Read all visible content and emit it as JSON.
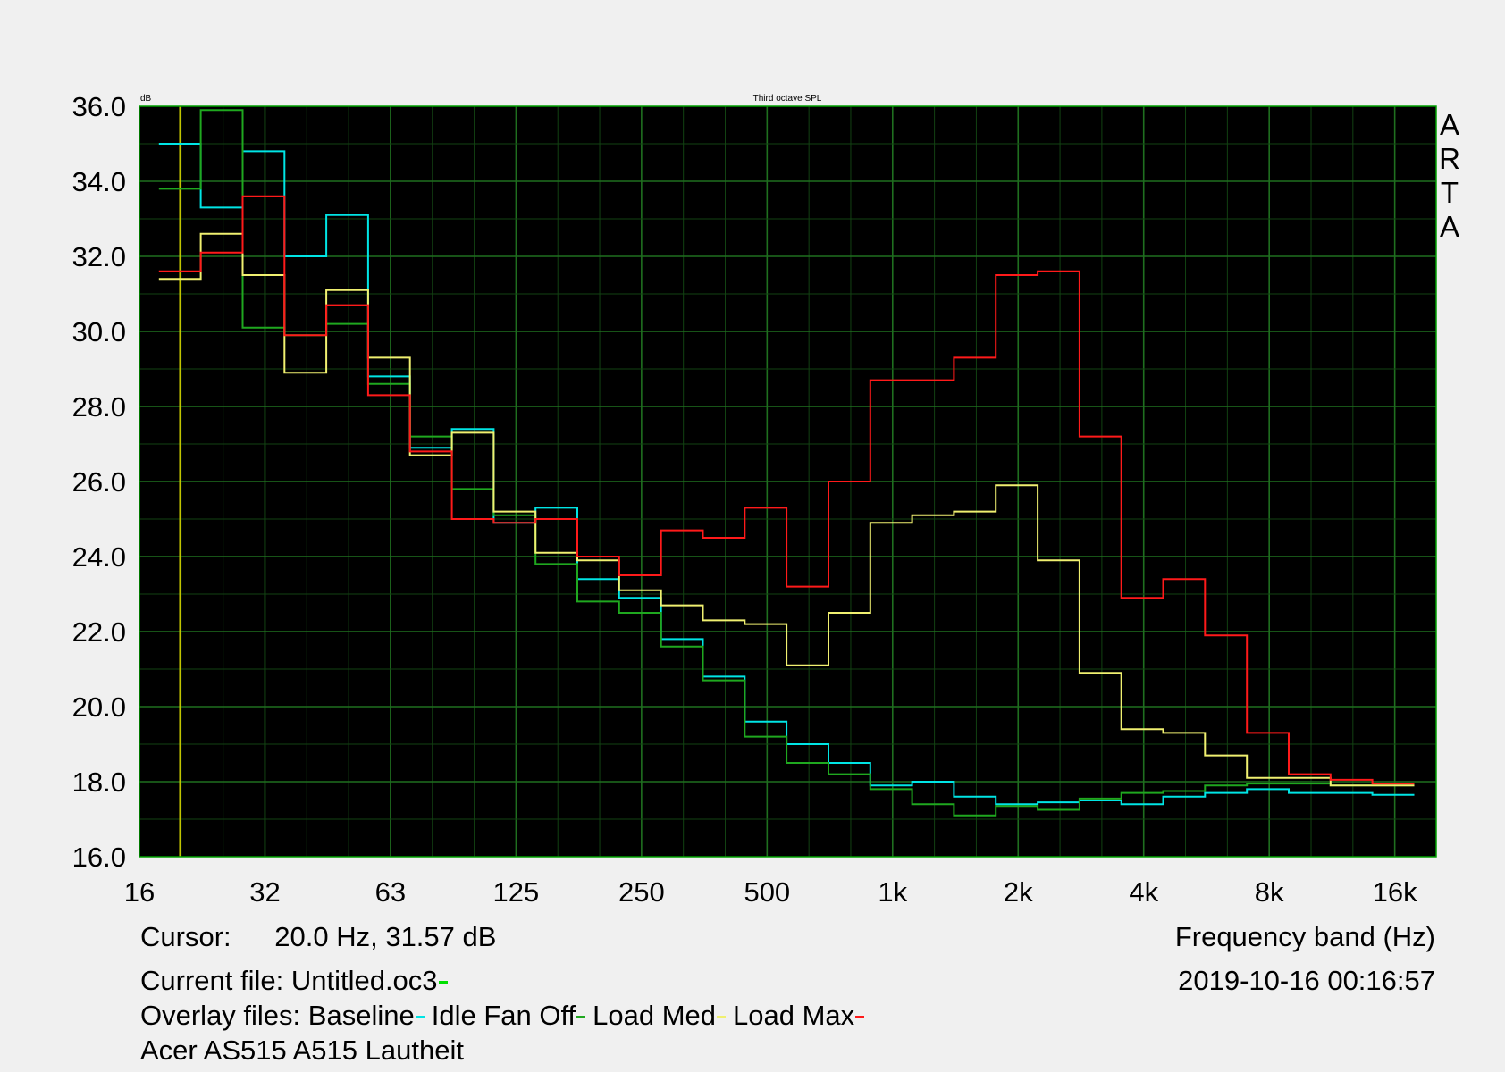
{
  "chart_data": {
    "type": "line",
    "title": "Third octave SPL",
    "ylabel": "dB",
    "xlabel": "Frequency band (Hz)",
    "brand": "ARTA",
    "ylim": [
      16,
      36
    ],
    "y_ticks": [
      "36.0",
      "34.0",
      "32.0",
      "30.0",
      "28.0",
      "26.0",
      "24.0",
      "22.0",
      "20.0",
      "18.0",
      "16.0"
    ],
    "x_tick_labels": [
      "16",
      "32",
      "63",
      "125",
      "250",
      "500",
      "1k",
      "2k",
      "4k",
      "8k",
      "16k"
    ],
    "bands": [
      "20",
      "25",
      "31.5",
      "40",
      "50",
      "63",
      "80",
      "100",
      "125",
      "160",
      "200",
      "250",
      "315",
      "400",
      "500",
      "630",
      "800",
      "1k",
      "1.25k",
      "1.6k",
      "2k",
      "2.5k",
      "3.15k",
      "4k",
      "5k",
      "6.3k",
      "8k",
      "10k",
      "12.5k",
      "16k"
    ],
    "cursor_x": 20.0,
    "grid": true,
    "series": [
      {
        "name": "Baseline",
        "color": "#00e5e5",
        "values": [
          35.0,
          33.3,
          34.8,
          32.0,
          33.1,
          28.8,
          26.9,
          27.4,
          24.9,
          25.3,
          23.4,
          22.9,
          21.8,
          20.8,
          19.6,
          19.0,
          18.5,
          17.9,
          18.0,
          17.6,
          17.4,
          17.45,
          17.5,
          17.4,
          17.6,
          17.7,
          17.8,
          17.7,
          17.7,
          17.65
        ]
      },
      {
        "name": "Idle Fan Off",
        "color": "#1fa81f",
        "values": [
          33.8,
          35.9,
          30.1,
          29.9,
          30.2,
          28.6,
          27.2,
          25.8,
          25.1,
          23.8,
          22.8,
          22.5,
          21.6,
          20.7,
          19.2,
          18.5,
          18.2,
          17.8,
          17.4,
          17.1,
          17.35,
          17.25,
          17.55,
          17.7,
          17.75,
          17.9,
          17.95,
          17.95,
          17.9,
          17.9
        ]
      },
      {
        "name": "Load Med",
        "color": "#f0f070",
        "values": [
          31.4,
          32.6,
          31.5,
          28.9,
          31.1,
          29.3,
          26.7,
          27.3,
          25.2,
          24.1,
          23.9,
          23.1,
          22.7,
          22.3,
          22.2,
          21.1,
          22.5,
          24.9,
          25.1,
          25.2,
          25.9,
          23.9,
          20.9,
          19.4,
          19.3,
          18.7,
          18.1,
          18.1,
          17.9,
          17.9
        ]
      },
      {
        "name": "Load Max",
        "color": "#ff1a1a",
        "values": [
          31.6,
          32.1,
          33.6,
          29.9,
          30.7,
          28.3,
          26.8,
          25.0,
          24.9,
          25.0,
          24.0,
          23.5,
          24.7,
          24.5,
          25.3,
          23.2,
          26.0,
          28.7,
          28.7,
          29.3,
          31.5,
          31.6,
          27.2,
          22.9,
          23.4,
          21.9,
          19.3,
          18.2,
          18.05,
          17.95
        ]
      }
    ]
  },
  "footer": {
    "cursor_label": "Cursor:",
    "cursor_value": "20.0 Hz, 31.57 dB",
    "date": "2019-10-16  00:16:57",
    "current_file_label": "Current file: Untitled.oc3",
    "current_file_color": "#00e000",
    "overlay_label": "Overlay files:",
    "overlay_files": [
      {
        "name": "Baseline",
        "color": "#00e5e5"
      },
      {
        "name": "Idle Fan Off",
        "color": "#1fa81f"
      },
      {
        "name": "Load Med",
        "color": "#f0f070"
      },
      {
        "name": "Load Max",
        "color": "#ff1a1a"
      }
    ],
    "description": "Acer AS515 A515 Lautheit"
  }
}
